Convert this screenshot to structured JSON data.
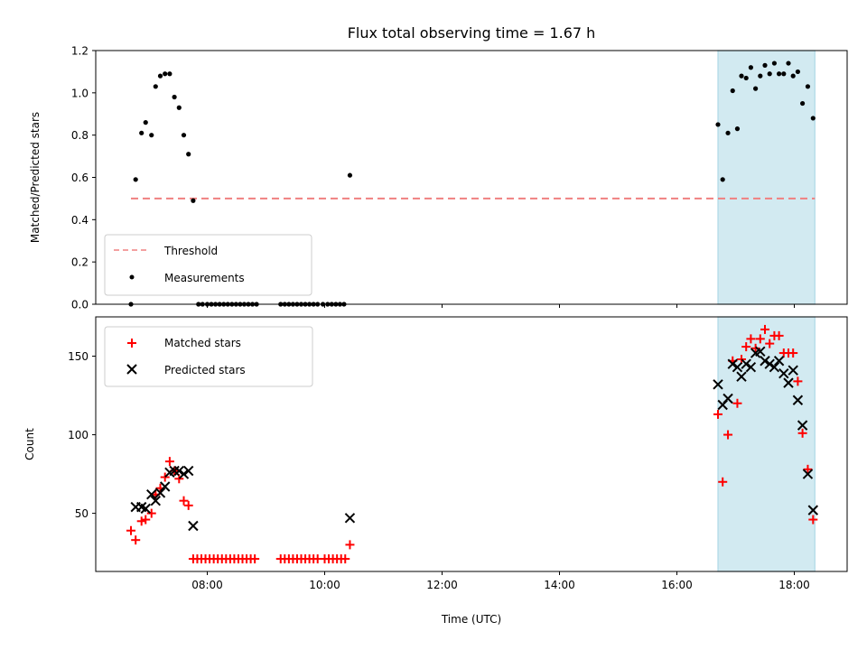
{
  "chart_data": [
    {
      "type": "scatter",
      "title": "Flux total observing time = 1.67 h",
      "xlabel": "",
      "ylabel": "Matched/Predicted stars",
      "xlim": [
        6.1,
        18.9
      ],
      "ylim": [
        0.0,
        1.2
      ],
      "yticks": [
        "0.0",
        "0.2",
        "0.4",
        "0.6",
        "0.8",
        "1.0",
        "1.2"
      ],
      "highlight_span": [
        16.7,
        18.35
      ],
      "highlight_color": "#add8e6",
      "threshold": {
        "name": "Threshold",
        "value": 0.5,
        "x_range": [
          6.7,
          18.35
        ],
        "color": "#f08080"
      },
      "series": [
        {
          "name": "Measurements",
          "color": "#000000",
          "marker": "dot",
          "points": [
            [
              6.7,
              0.0
            ],
            [
              6.78,
              0.59
            ],
            [
              6.88,
              0.81
            ],
            [
              6.95,
              0.86
            ],
            [
              7.05,
              0.8
            ],
            [
              7.12,
              1.03
            ],
            [
              7.2,
              1.08
            ],
            [
              7.28,
              1.09
            ],
            [
              7.36,
              1.09
            ],
            [
              7.44,
              0.98
            ],
            [
              7.52,
              0.93
            ],
            [
              7.6,
              0.8
            ],
            [
              7.68,
              0.71
            ],
            [
              7.76,
              0.49
            ],
            [
              7.85,
              0.0
            ],
            [
              7.92,
              0.0
            ],
            [
              8.0,
              0.0
            ],
            [
              8.07,
              0.0
            ],
            [
              8.14,
              0.0
            ],
            [
              8.21,
              0.0
            ],
            [
              8.28,
              0.0
            ],
            [
              8.35,
              0.0
            ],
            [
              8.42,
              0.0
            ],
            [
              8.49,
              0.0
            ],
            [
              8.56,
              0.0
            ],
            [
              8.63,
              0.0
            ],
            [
              8.7,
              0.0
            ],
            [
              8.77,
              0.0
            ],
            [
              8.84,
              0.0
            ],
            [
              9.25,
              0.0
            ],
            [
              9.32,
              0.0
            ],
            [
              9.39,
              0.0
            ],
            [
              9.46,
              0.0
            ],
            [
              9.53,
              0.0
            ],
            [
              9.6,
              0.0
            ],
            [
              9.67,
              0.0
            ],
            [
              9.74,
              0.0
            ],
            [
              9.81,
              0.0
            ],
            [
              9.88,
              0.0
            ],
            [
              9.97,
              0.0
            ],
            [
              10.05,
              0.0
            ],
            [
              10.12,
              0.0
            ],
            [
              10.19,
              0.0
            ],
            [
              10.26,
              0.0
            ],
            [
              10.33,
              0.0
            ],
            [
              10.43,
              0.61
            ],
            [
              16.7,
              0.85
            ],
            [
              16.78,
              0.59
            ],
            [
              16.87,
              0.81
            ],
            [
              16.95,
              1.01
            ],
            [
              17.03,
              0.83
            ],
            [
              17.1,
              1.08
            ],
            [
              17.18,
              1.07
            ],
            [
              17.26,
              1.12
            ],
            [
              17.34,
              1.02
            ],
            [
              17.42,
              1.08
            ],
            [
              17.5,
              1.13
            ],
            [
              17.58,
              1.09
            ],
            [
              17.66,
              1.14
            ],
            [
              17.74,
              1.09
            ],
            [
              17.82,
              1.09
            ],
            [
              17.9,
              1.14
            ],
            [
              17.98,
              1.08
            ],
            [
              18.06,
              1.1
            ],
            [
              18.14,
              0.95
            ],
            [
              18.23,
              1.03
            ],
            [
              18.32,
              0.88
            ]
          ]
        }
      ],
      "legend": {
        "position": "lower left",
        "entries": [
          "Threshold",
          "Measurements"
        ]
      }
    },
    {
      "type": "scatter",
      "title": "",
      "xlabel": "Time (UTC)",
      "ylabel": "Count",
      "xlim": [
        6.1,
        18.9
      ],
      "ylim": [
        13,
        175
      ],
      "xticks": [
        {
          "value": 8,
          "label": "08:00"
        },
        {
          "value": 10,
          "label": "10:00"
        },
        {
          "value": 12,
          "label": "12:00"
        },
        {
          "value": 14,
          "label": "14:00"
        },
        {
          "value": 16,
          "label": "16:00"
        },
        {
          "value": 18,
          "label": "18:00"
        }
      ],
      "yticks": [
        "50",
        "100",
        "150"
      ],
      "highlight_span": [
        16.7,
        18.35
      ],
      "highlight_color": "#add8e6",
      "series": [
        {
          "name": "Matched stars",
          "color": "#ff0000",
          "marker": "plus",
          "points": [
            [
              6.7,
              39
            ],
            [
              6.78,
              33
            ],
            [
              6.88,
              45
            ],
            [
              6.95,
              46
            ],
            [
              7.05,
              50
            ],
            [
              7.12,
              62
            ],
            [
              7.2,
              66
            ],
            [
              7.28,
              73
            ],
            [
              7.36,
              83
            ],
            [
              7.44,
              77
            ],
            [
              7.52,
              72
            ],
            [
              7.6,
              58
            ],
            [
              7.68,
              55
            ],
            [
              7.76,
              21
            ],
            [
              7.83,
              21
            ],
            [
              7.9,
              21
            ],
            [
              7.97,
              21
            ],
            [
              8.04,
              21
            ],
            [
              8.11,
              21
            ],
            [
              8.18,
              21
            ],
            [
              8.25,
              21
            ],
            [
              8.32,
              21
            ],
            [
              8.39,
              21
            ],
            [
              8.46,
              21
            ],
            [
              8.53,
              21
            ],
            [
              8.6,
              21
            ],
            [
              8.67,
              21
            ],
            [
              8.74,
              21
            ],
            [
              8.81,
              21
            ],
            [
              9.25,
              21
            ],
            [
              9.32,
              21
            ],
            [
              9.39,
              21
            ],
            [
              9.46,
              21
            ],
            [
              9.53,
              21
            ],
            [
              9.6,
              21
            ],
            [
              9.67,
              21
            ],
            [
              9.74,
              21
            ],
            [
              9.81,
              21
            ],
            [
              9.88,
              21
            ],
            [
              10.0,
              21
            ],
            [
              10.07,
              21
            ],
            [
              10.14,
              21
            ],
            [
              10.21,
              21
            ],
            [
              10.28,
              21
            ],
            [
              10.35,
              21
            ],
            [
              10.43,
              30
            ],
            [
              16.7,
              113
            ],
            [
              16.78,
              70
            ],
            [
              16.87,
              100
            ],
            [
              16.95,
              147
            ],
            [
              17.03,
              120
            ],
            [
              17.1,
              148
            ],
            [
              17.18,
              156
            ],
            [
              17.26,
              161
            ],
            [
              17.34,
              155
            ],
            [
              17.42,
              161
            ],
            [
              17.5,
              167
            ],
            [
              17.58,
              158
            ],
            [
              17.66,
              163
            ],
            [
              17.74,
              163
            ],
            [
              17.82,
              152
            ],
            [
              17.9,
              152
            ],
            [
              17.98,
              152
            ],
            [
              18.06,
              134
            ],
            [
              18.14,
              101
            ],
            [
              18.23,
              78
            ],
            [
              18.32,
              46
            ]
          ]
        },
        {
          "name": "Predicted stars",
          "color": "#000000",
          "marker": "x",
          "points": [
            [
              6.78,
              54
            ],
            [
              6.88,
              54
            ],
            [
              6.95,
              53
            ],
            [
              7.05,
              62
            ],
            [
              7.12,
              58
            ],
            [
              7.2,
              63
            ],
            [
              7.28,
              67
            ],
            [
              7.36,
              76
            ],
            [
              7.44,
              77
            ],
            [
              7.52,
              77
            ],
            [
              7.6,
              75
            ],
            [
              7.68,
              77
            ],
            [
              7.76,
              42
            ],
            [
              10.43,
              47
            ],
            [
              16.7,
              132
            ],
            [
              16.78,
              119
            ],
            [
              16.87,
              123
            ],
            [
              16.95,
              145
            ],
            [
              17.03,
              143
            ],
            [
              17.1,
              137
            ],
            [
              17.18,
              145
            ],
            [
              17.26,
              143
            ],
            [
              17.34,
              152
            ],
            [
              17.42,
              153
            ],
            [
              17.5,
              147
            ],
            [
              17.58,
              145
            ],
            [
              17.66,
              143
            ],
            [
              17.74,
              147
            ],
            [
              17.82,
              139
            ],
            [
              17.9,
              133
            ],
            [
              17.98,
              141
            ],
            [
              18.06,
              122
            ],
            [
              18.14,
              106
            ],
            [
              18.23,
              75
            ],
            [
              18.32,
              52
            ]
          ]
        }
      ],
      "legend": {
        "position": "upper left",
        "entries": [
          "Matched stars",
          "Predicted stars"
        ]
      }
    }
  ]
}
